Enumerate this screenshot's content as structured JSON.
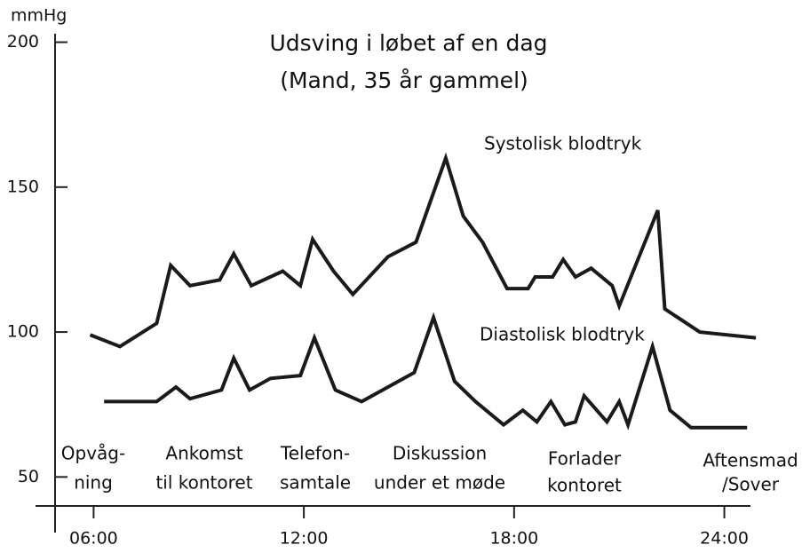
{
  "chart_data": {
    "type": "line",
    "title": "Udsving i løbet af en dag",
    "subtitle": "(Mand, 35 år gammel)",
    "y_label": "mmHg",
    "xlim": [
      4.9,
      25
    ],
    "ylim": [
      40,
      202
    ],
    "xticks": [
      {
        "value": 6,
        "label": "06:00"
      },
      {
        "value": 12,
        "label": "12:00"
      },
      {
        "value": 18,
        "label": "18:00"
      },
      {
        "value": 24,
        "label": "24:00"
      }
    ],
    "yticks": [
      50,
      100,
      150,
      200
    ],
    "series": [
      {
        "name": "Systolisk blodtryk",
        "color": "#1a1a1a",
        "x": [
          5.9,
          6.75,
          7.8,
          8.2,
          8.75,
          9.6,
          10,
          10.5,
          11.4,
          11.9,
          12.25,
          12.85,
          13.4,
          14.4,
          15.2,
          16.05,
          16.55,
          17.1,
          17.8,
          18.4,
          18.6,
          19.1,
          19.4,
          19.75,
          20.2,
          20.8,
          21,
          22.1,
          22.3,
          23.3,
          24.9
        ],
        "values": [
          99,
          95,
          103,
          123,
          116,
          118,
          127,
          116,
          121,
          116,
          132,
          121,
          113,
          126,
          131,
          160,
          140,
          131,
          115,
          115,
          119,
          119,
          125,
          119,
          122,
          116,
          109,
          142,
          108,
          100,
          98
        ]
      },
      {
        "name": "Diastolisk blodtryk",
        "color": "#1a1a1a",
        "x": [
          6.3,
          7.8,
          8.35,
          8.75,
          9.65,
          10,
          10.45,
          11.05,
          11.9,
          12.3,
          12.9,
          13.65,
          15.15,
          15.7,
          16.3,
          16.9,
          17.7,
          18.25,
          18.65,
          19.05,
          19.45,
          19.75,
          20,
          20.65,
          21,
          21.25,
          21.95,
          22.45,
          23.05,
          24.65
        ],
        "values": [
          76,
          76,
          81,
          77,
          80,
          91,
          80,
          84,
          85,
          98,
          80,
          76,
          86,
          105,
          83,
          76,
          68,
          73,
          69,
          76,
          68,
          69,
          78,
          69,
          76,
          68,
          95,
          73,
          67,
          67
        ]
      }
    ],
    "annotations": [
      [
        "Opvåg-",
        "ning"
      ],
      [
        "Ankomst",
        "til kontoret"
      ],
      [
        "Telefon-",
        "samtale"
      ],
      [
        "Diskussion",
        "under et møde"
      ],
      [
        "Forlader",
        "kontoret"
      ],
      [
        "Aftensmad",
        "/Sover"
      ]
    ]
  }
}
